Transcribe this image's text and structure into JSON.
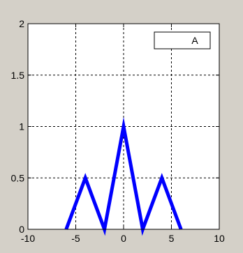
{
  "figure": {
    "background": "#d4d0c8"
  },
  "chart_data": {
    "type": "line",
    "title": "",
    "xlabel": "",
    "ylabel": "",
    "xlim": [
      -10,
      10
    ],
    "ylim": [
      0,
      2
    ],
    "xticks": [
      -10,
      -5,
      0,
      5,
      10
    ],
    "xtick_labels": [
      "-10",
      "-5",
      "0",
      "5",
      "10"
    ],
    "yticks": [
      0,
      0.5,
      1,
      1.5,
      2
    ],
    "ytick_labels": [
      "0",
      "0.5",
      "1",
      "1.5",
      "2"
    ],
    "grid": true,
    "legend": {
      "position": "top-right",
      "entries": [
        "A"
      ]
    },
    "series": [
      {
        "name": "A",
        "color": "#0000ff",
        "x": [
          -6,
          -4,
          -2,
          0,
          2,
          4,
          6
        ],
        "y": [
          0,
          0.5,
          0,
          1,
          0,
          0.5,
          0
        ]
      }
    ]
  }
}
